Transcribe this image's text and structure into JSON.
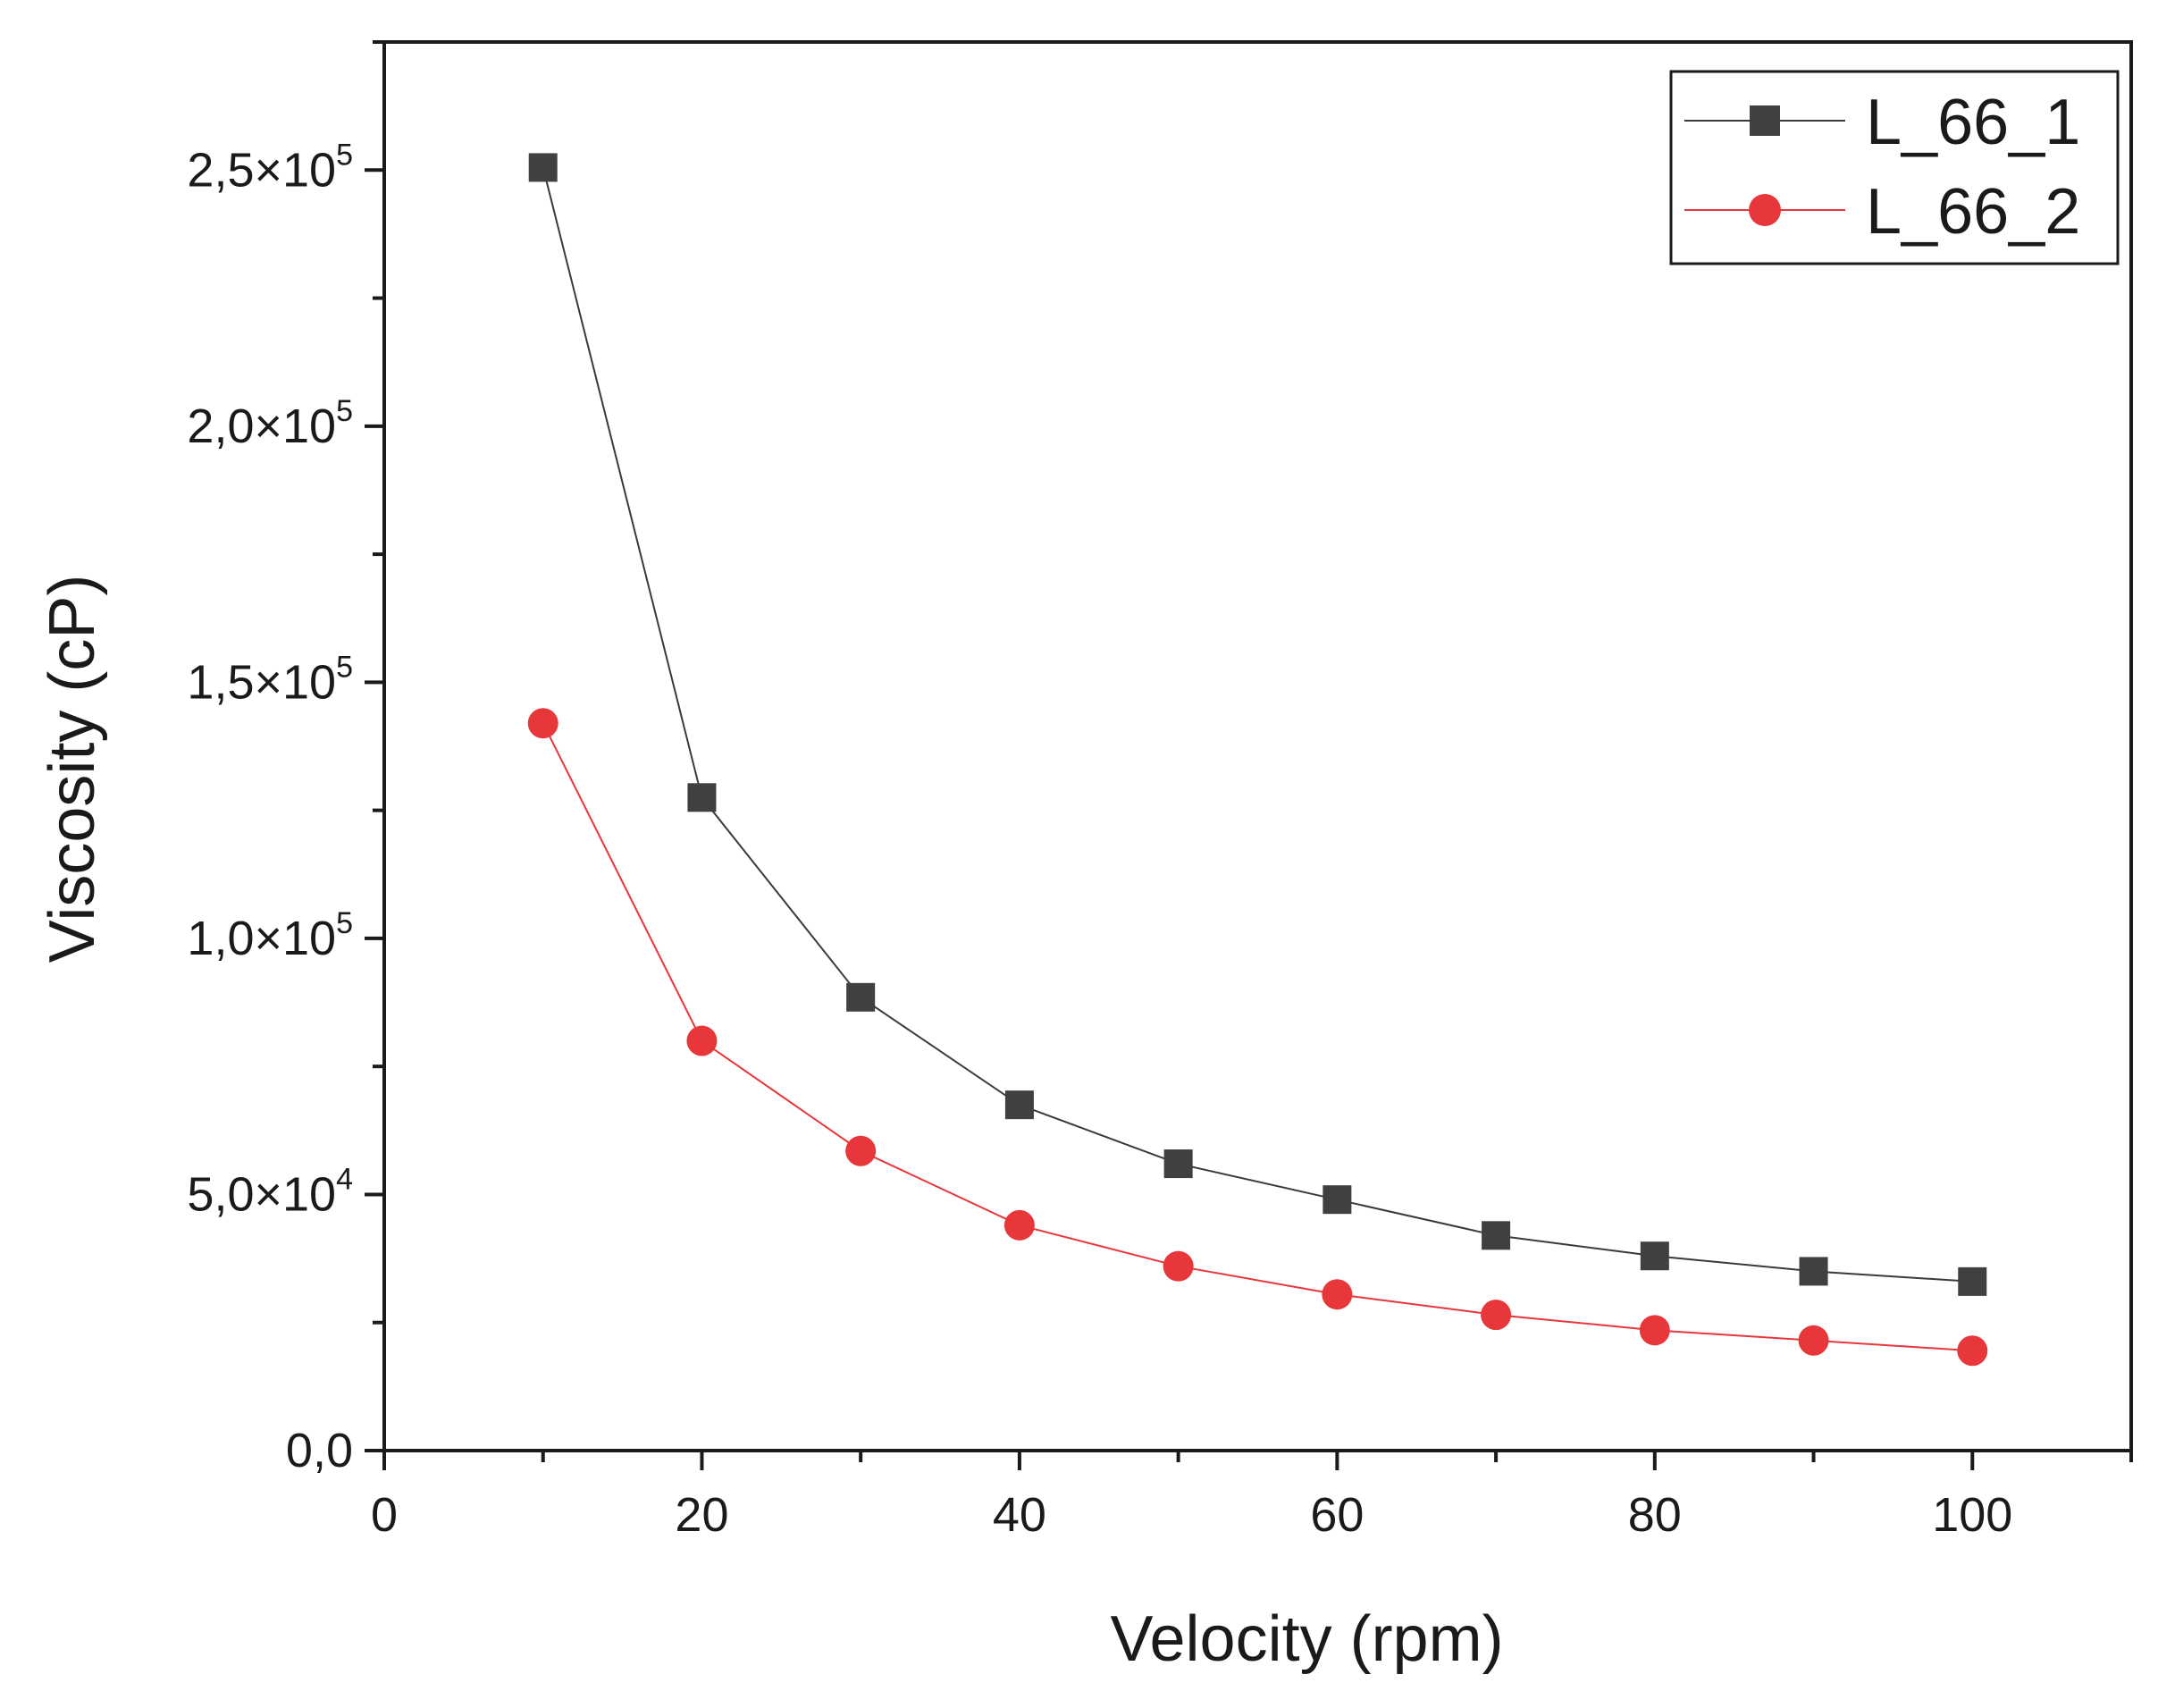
{
  "chart_data": {
    "type": "line",
    "title": "",
    "xlabel": "Velocity (rpm)",
    "ylabel": "Viscosity (cP)",
    "xlim": [
      0,
      110
    ],
    "ylim": [
      0,
      275000
    ],
    "x_ticks": [
      {
        "value": 0,
        "label": "0"
      },
      {
        "value": 20,
        "label": "20"
      },
      {
        "value": 40,
        "label": "40"
      },
      {
        "value": 60,
        "label": "60"
      },
      {
        "value": 80,
        "label": "80"
      },
      {
        "value": 100,
        "label": "100"
      }
    ],
    "y_ticks": [
      {
        "value": 0,
        "mantissa": "0,0",
        "exp": ""
      },
      {
        "value": 50000,
        "mantissa": "5,0×10",
        "exp": "4"
      },
      {
        "value": 100000,
        "mantissa": "1,0×10",
        "exp": "5"
      },
      {
        "value": 150000,
        "mantissa": "1,5×10",
        "exp": "5"
      },
      {
        "value": 200000,
        "mantissa": "2,0×10",
        "exp": "5"
      },
      {
        "value": 250000,
        "mantissa": "2,5×10",
        "exp": "5"
      }
    ],
    "legend_position": "top-right",
    "series": [
      {
        "name": "L_66_1",
        "marker": "square",
        "color": "#404040",
        "line_color": "#3a3a3a",
        "x": [
          10,
          20,
          30,
          40,
          50,
          60,
          70,
          80,
          90,
          100
        ],
        "values": [
          250500,
          127500,
          88500,
          67500,
          56000,
          49000,
          42000,
          38000,
          35000,
          33000
        ]
      },
      {
        "name": "L_66_2",
        "marker": "circle",
        "color": "#e8373a",
        "line_color": "#e8373a",
        "x": [
          10,
          20,
          30,
          40,
          50,
          60,
          70,
          80,
          90,
          100
        ],
        "values": [
          142000,
          80000,
          58500,
          44000,
          36000,
          30500,
          26500,
          23500,
          21500,
          19500
        ]
      }
    ]
  }
}
